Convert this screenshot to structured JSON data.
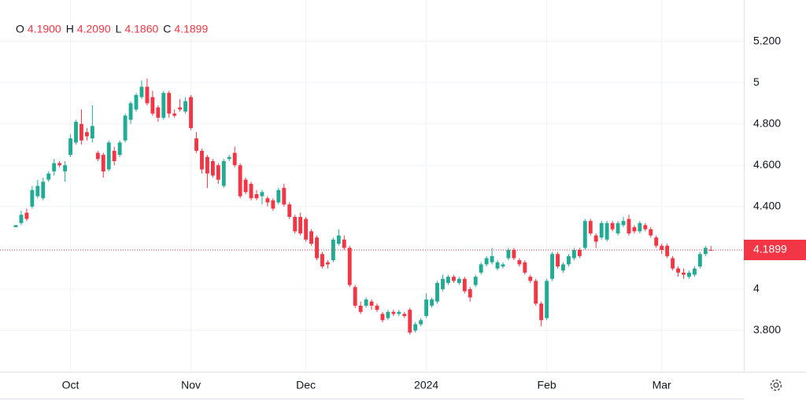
{
  "chart_data": {
    "type": "candlestick",
    "legend": [
      {
        "key": "O",
        "value": "4.1900"
      },
      {
        "key": "H",
        "value": "4.2090"
      },
      {
        "key": "L",
        "value": "4.1860"
      },
      {
        "key": "C",
        "value": "4.1899"
      }
    ],
    "up_color": "#22ab94",
    "down_color": "#f23645",
    "last_price": {
      "value": 4.1899,
      "label": "4.1899"
    },
    "ylim": [
      3.6,
      5.4
    ],
    "yticks": [
      {
        "value": 5.2,
        "label": "5.200"
      },
      5,
      {
        "value": 4.8,
        "label": "4.800"
      },
      {
        "value": 4.6,
        "label": "4.600"
      },
      {
        "value": 4.4,
        "label": "4.400"
      },
      4,
      {
        "value": 3.8,
        "label": "3.800"
      }
    ],
    "xlim": [
      0,
      133
    ],
    "xticks": [
      {
        "value": 10,
        "label": "Oct"
      },
      {
        "value": 32,
        "label": "Nov"
      },
      {
        "value": 53,
        "label": "Dec"
      },
      {
        "value": 75,
        "label": "2024"
      },
      {
        "value": 97,
        "label": "Feb"
      },
      {
        "value": 118,
        "label": "Mar"
      }
    ],
    "grid": true,
    "candles": [
      [
        4.3,
        4.31,
        4.3,
        4.31
      ],
      [
        4.32,
        4.38,
        4.31,
        4.36
      ],
      [
        4.37,
        4.39,
        4.33,
        4.34
      ],
      [
        4.4,
        4.5,
        4.39,
        4.48
      ],
      [
        4.45,
        4.53,
        4.44,
        4.5
      ],
      [
        4.44,
        4.54,
        4.43,
        4.52
      ],
      [
        4.53,
        4.57,
        4.52,
        4.56
      ],
      [
        4.57,
        4.63,
        4.55,
        4.61
      ],
      [
        4.61,
        4.62,
        4.59,
        4.6
      ],
      [
        4.57,
        4.62,
        4.52,
        4.6
      ],
      [
        4.65,
        4.75,
        4.64,
        4.73
      ],
      [
        4.71,
        4.82,
        4.7,
        4.81
      ],
      [
        4.8,
        4.87,
        4.7,
        4.72
      ],
      [
        4.76,
        4.78,
        4.72,
        4.74
      ],
      [
        4.73,
        4.89,
        4.71,
        4.79
      ],
      [
        4.66,
        4.67,
        4.62,
        4.63
      ],
      [
        4.65,
        4.66,
        4.54,
        4.57
      ],
      [
        4.58,
        4.72,
        4.57,
        4.71
      ],
      [
        4.67,
        4.69,
        4.6,
        4.62
      ],
      [
        4.65,
        4.72,
        4.64,
        4.71
      ],
      [
        4.72,
        4.85,
        4.71,
        4.84
      ],
      [
        4.82,
        4.91,
        4.8,
        4.9
      ],
      [
        4.87,
        4.95,
        4.86,
        4.94
      ],
      [
        4.93,
        5.01,
        4.92,
        4.98
      ],
      [
        4.98,
        5.02,
        4.89,
        4.9
      ],
      [
        4.93,
        4.96,
        4.84,
        4.85
      ],
      [
        4.88,
        4.89,
        4.81,
        4.83
      ],
      [
        4.83,
        4.96,
        4.82,
        4.95
      ],
      [
        4.95,
        4.96,
        4.83,
        4.85
      ],
      [
        4.85,
        4.87,
        4.83,
        4.84
      ],
      [
        4.88,
        4.92,
        4.86,
        4.87
      ],
      [
        4.86,
        4.93,
        4.85,
        4.91
      ],
      [
        4.93,
        4.94,
        4.77,
        4.78
      ],
      [
        4.73,
        4.76,
        4.66,
        4.67
      ],
      [
        4.67,
        4.68,
        4.56,
        4.58
      ],
      [
        4.64,
        4.65,
        4.49,
        4.56
      ],
      [
        4.62,
        4.63,
        4.54,
        4.55
      ],
      [
        4.6,
        4.61,
        4.51,
        4.53
      ],
      [
        4.5,
        4.63,
        4.49,
        4.62
      ],
      [
        4.63,
        4.65,
        4.62,
        4.64
      ],
      [
        4.66,
        4.69,
        4.59,
        4.6
      ],
      [
        4.6,
        4.61,
        4.44,
        4.45
      ],
      [
        4.53,
        4.54,
        4.46,
        4.47
      ],
      [
        4.51,
        4.52,
        4.43,
        4.44
      ],
      [
        4.46,
        4.48,
        4.43,
        4.44
      ],
      [
        4.45,
        4.48,
        4.41,
        4.47
      ],
      [
        4.44,
        4.45,
        4.4,
        4.42
      ],
      [
        4.43,
        4.44,
        4.38,
        4.39
      ],
      [
        4.42,
        4.49,
        4.41,
        4.48
      ],
      [
        4.49,
        4.51,
        4.4,
        4.41
      ],
      [
        4.41,
        4.42,
        4.34,
        4.35
      ],
      [
        4.35,
        4.36,
        4.27,
        4.28
      ],
      [
        4.35,
        4.37,
        4.26,
        4.27
      ],
      [
        4.34,
        4.35,
        4.23,
        4.24
      ],
      [
        4.28,
        4.29,
        4.21,
        4.22
      ],
      [
        4.25,
        4.26,
        4.14,
        4.15
      ],
      [
        4.17,
        4.18,
        4.1,
        4.11
      ],
      [
        4.13,
        4.14,
        4.1,
        4.12
      ],
      [
        4.14,
        4.25,
        4.13,
        4.24
      ],
      [
        4.22,
        4.29,
        4.21,
        4.26
      ],
      [
        4.24,
        4.26,
        4.19,
        4.2
      ],
      [
        4.2,
        4.21,
        4.01,
        4.02
      ],
      [
        4.01,
        4.02,
        3.91,
        3.92
      ],
      [
        3.92,
        3.94,
        3.88,
        3.89
      ],
      [
        3.92,
        3.96,
        3.91,
        3.95
      ],
      [
        3.94,
        3.95,
        3.9,
        3.92
      ],
      [
        3.92,
        3.93,
        3.89,
        3.9
      ],
      [
        3.88,
        3.89,
        3.84,
        3.85
      ],
      [
        3.86,
        3.9,
        3.85,
        3.89
      ],
      [
        3.89,
        3.9,
        3.87,
        3.88
      ],
      [
        3.88,
        3.9,
        3.87,
        3.89
      ],
      [
        3.88,
        3.89,
        3.86,
        3.87
      ],
      [
        3.9,
        3.91,
        3.78,
        3.79
      ],
      [
        3.8,
        3.84,
        3.79,
        3.83
      ],
      [
        3.83,
        3.86,
        3.82,
        3.85
      ],
      [
        3.87,
        3.98,
        3.86,
        3.95
      ],
      [
        3.92,
        3.96,
        3.91,
        3.95
      ],
      [
        3.94,
        4.04,
        3.93,
        4.03
      ],
      [
        4.0,
        4.07,
        3.99,
        4.05
      ],
      [
        4.03,
        4.07,
        4.02,
        4.06
      ],
      [
        4.06,
        4.07,
        4.03,
        4.04
      ],
      [
        4.03,
        4.06,
        4.02,
        4.05
      ],
      [
        4.05,
        4.06,
        3.98,
        3.99
      ],
      [
        4.0,
        4.01,
        3.94,
        3.96
      ],
      [
        4.02,
        4.07,
        4.01,
        4.06
      ],
      [
        4.08,
        4.13,
        4.07,
        4.12
      ],
      [
        4.12,
        4.16,
        4.11,
        4.15
      ],
      [
        4.13,
        4.2,
        4.12,
        4.16
      ],
      [
        4.1,
        4.14,
        4.09,
        4.13
      ],
      [
        4.11,
        4.13,
        4.1,
        4.12
      ],
      [
        4.15,
        4.2,
        4.14,
        4.19
      ],
      [
        4.19,
        4.2,
        4.14,
        4.15
      ],
      [
        4.14,
        4.15,
        4.11,
        4.12
      ],
      [
        4.13,
        4.14,
        4.07,
        4.08
      ],
      [
        4.06,
        4.07,
        4.03,
        4.04
      ],
      [
        4.04,
        4.05,
        3.92,
        3.93
      ],
      [
        3.93,
        3.94,
        3.82,
        3.85
      ],
      [
        3.86,
        4.05,
        3.85,
        4.04
      ],
      [
        4.05,
        4.18,
        4.04,
        4.17
      ],
      [
        4.17,
        4.18,
        4.1,
        4.11
      ],
      [
        4.09,
        4.13,
        4.08,
        4.12
      ],
      [
        4.12,
        4.17,
        4.11,
        4.16
      ],
      [
        4.15,
        4.2,
        4.14,
        4.19
      ],
      [
        4.19,
        4.2,
        4.15,
        4.16
      ],
      [
        4.2,
        4.34,
        4.19,
        4.33
      ],
      [
        4.33,
        4.34,
        4.26,
        4.27
      ],
      [
        4.26,
        4.27,
        4.2,
        4.23
      ],
      [
        4.25,
        4.33,
        4.24,
        4.32
      ],
      [
        4.24,
        4.33,
        4.23,
        4.32
      ],
      [
        4.32,
        4.33,
        4.28,
        4.29
      ],
      [
        4.27,
        4.33,
        4.26,
        4.32
      ],
      [
        4.31,
        4.35,
        4.3,
        4.33
      ],
      [
        4.34,
        4.36,
        4.26,
        4.27
      ],
      [
        4.3,
        4.31,
        4.27,
        4.28
      ],
      [
        4.28,
        4.33,
        4.27,
        4.32
      ],
      [
        4.31,
        4.32,
        4.28,
        4.29
      ],
      [
        4.29,
        4.3,
        4.25,
        4.26
      ],
      [
        4.25,
        4.26,
        4.2,
        4.21
      ],
      [
        4.21,
        4.22,
        4.17,
        4.19
      ],
      [
        4.21,
        4.22,
        4.15,
        4.16
      ],
      [
        4.15,
        4.16,
        4.09,
        4.1
      ],
      [
        4.1,
        4.11,
        4.06,
        4.08
      ],
      [
        4.08,
        4.1,
        4.05,
        4.07
      ],
      [
        4.06,
        4.09,
        4.05,
        4.08
      ],
      [
        4.07,
        4.11,
        4.06,
        4.1
      ],
      [
        4.11,
        4.18,
        4.1,
        4.17
      ],
      [
        4.17,
        4.21,
        4.16,
        4.2
      ],
      [
        4.19,
        4.209,
        4.186,
        4.1899
      ]
    ]
  }
}
